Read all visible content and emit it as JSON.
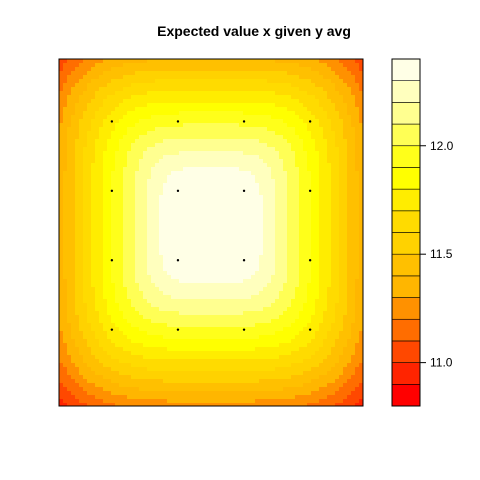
{
  "chart_data": {
    "type": "heatmap",
    "subtype": "filled-contour",
    "title": "Expected value x given y avg",
    "xlabel": "",
    "ylabel": "",
    "x_axis_shown": false,
    "y_axis_shown": false,
    "field_peak": 12.4,
    "field_min": 10.8,
    "grid_points": {
      "x": [
        1,
        2,
        3,
        4
      ],
      "y": [
        1,
        2,
        3,
        4
      ],
      "marker": "dot"
    },
    "colorbar": {
      "range": [
        10.8,
        12.4
      ],
      "ticks": [
        11.0,
        11.5,
        12.0
      ],
      "tick_labels": [
        "11.0",
        "11.5",
        "12.0"
      ],
      "levels": [
        10.8,
        10.9,
        11.0,
        11.1,
        11.2,
        11.3,
        11.4,
        11.5,
        11.6,
        11.7,
        11.8,
        11.9,
        12.0,
        12.1,
        12.2,
        12.3,
        12.4
      ],
      "colors": [
        "#FF0000",
        "#FF2400",
        "#FF4800",
        "#FF6D00",
        "#FF9100",
        "#FFB600",
        "#FFC000",
        "#FFD200",
        "#FFDB00",
        "#FFED00",
        "#FFFF00",
        "#FFFF1A",
        "#FFFF55",
        "#FFFF90",
        "#FFFFBE",
        "#FFFFE6"
      ]
    },
    "grid": false,
    "legend": "right (colorbar)"
  }
}
